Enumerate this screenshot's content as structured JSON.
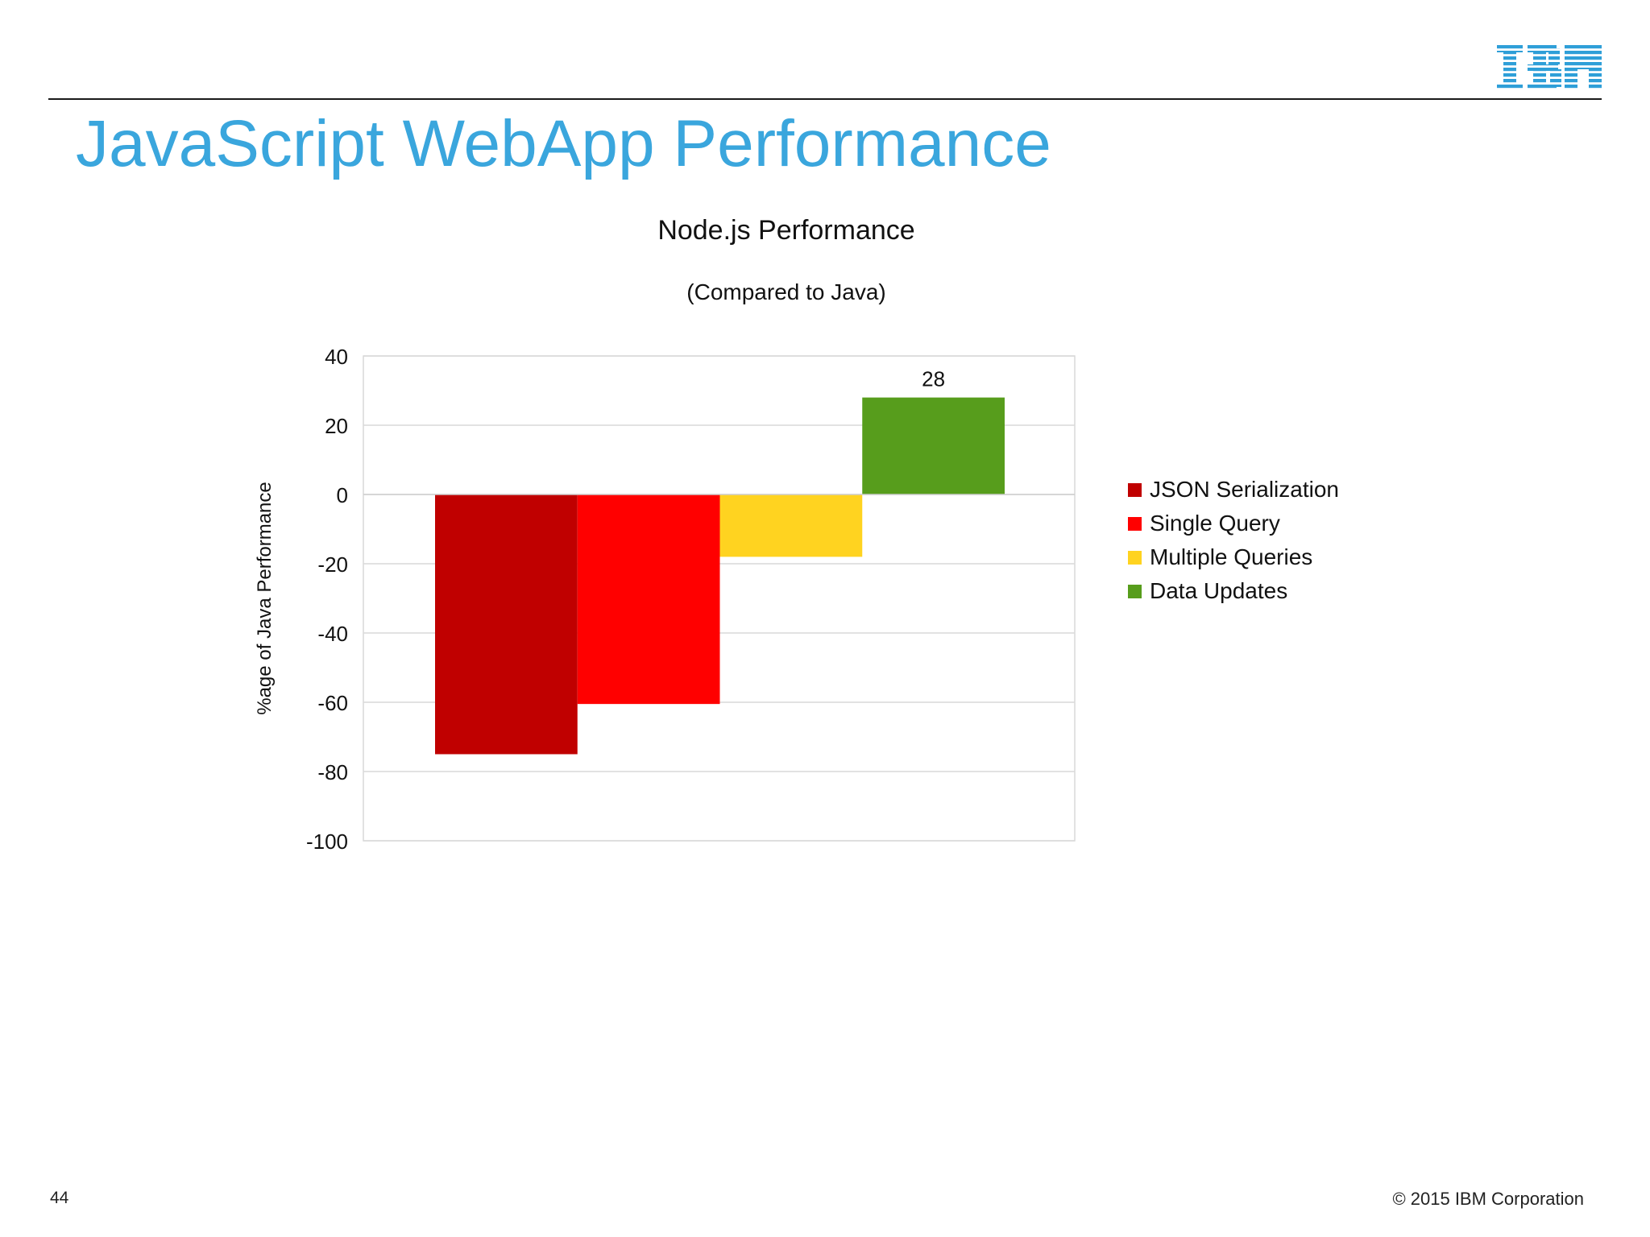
{
  "slide": {
    "title": "JavaScript WebApp Performance",
    "page_number": "44",
    "copyright": "© 2015 IBM Corporation",
    "logo_text": "IBM",
    "title_color": "#3aa6dd",
    "logo_color": "#2f9fd8"
  },
  "chart_data": {
    "type": "bar",
    "title": "Node.js Performance",
    "subtitle": "(Compared to Java)",
    "xlabel": "",
    "ylabel": "%age of Java Performance",
    "ylim": [
      -100,
      40
    ],
    "yticks": [
      40,
      20,
      0,
      -20,
      -40,
      -60,
      -80,
      -100
    ],
    "grid": true,
    "legend_position": "right",
    "series": [
      {
        "name": "JSON Serialization",
        "values": [
          -75
        ],
        "color": "#c00000",
        "label": ""
      },
      {
        "name": "Single Query",
        "values": [
          -60.5
        ],
        "color": "#ff0000",
        "label": ""
      },
      {
        "name": "Multiple Queries",
        "values": [
          -18
        ],
        "color": "#ffd320",
        "label": ""
      },
      {
        "name": "Data Updates",
        "values": [
          28
        ],
        "color": "#579d1c",
        "label": "28"
      }
    ]
  }
}
